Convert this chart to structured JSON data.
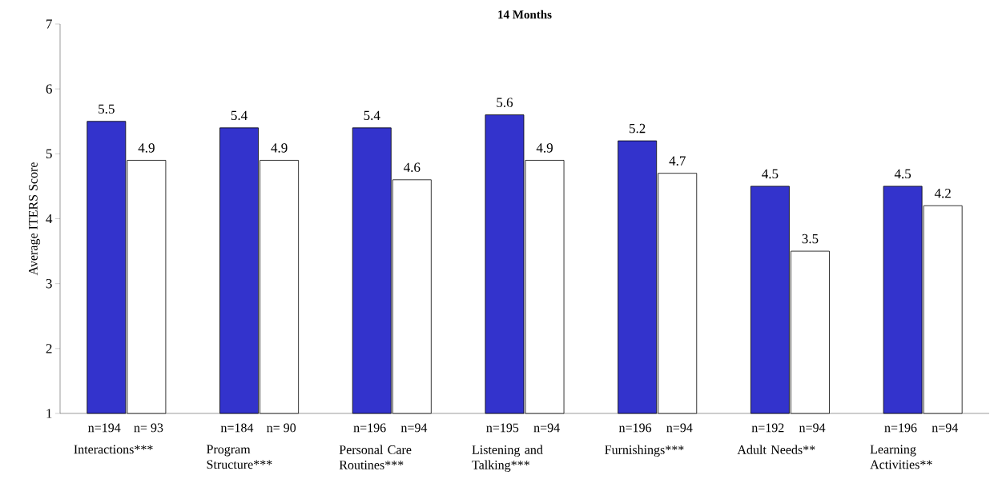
{
  "chart_data": {
    "type": "bar",
    "title": "14 Months",
    "ylabel": "Average ITERS Score",
    "categories": [
      "Interactions***",
      "Program Structure***",
      "Personal Care Routines***",
      "Listening and Talking***",
      "Furnishings***",
      "Adult Needs**",
      "Learning Activities**"
    ],
    "series": [
      {
        "color": "#3333cc",
        "values": [
          5.5,
          5.4,
          5.4,
          5.6,
          5.2,
          4.5,
          4.5
        ]
      },
      {
        "color": "#ffffff",
        "values": [
          4.9,
          4.9,
          4.6,
          4.9,
          4.7,
          3.5,
          4.2
        ]
      }
    ],
    "ylim": [
      1,
      7
    ],
    "yticks": [
      1,
      2,
      3,
      4,
      5,
      6,
      7
    ],
    "data_labels": true,
    "grid": false,
    "annotations": [
      "n=194",
      "n= 93",
      "n=184",
      "n= 90",
      "n=196",
      "n=94",
      "n=195",
      "n=94",
      "n=196",
      "n=94",
      "n=192",
      "n=94",
      "n=196",
      "n=94"
    ]
  }
}
